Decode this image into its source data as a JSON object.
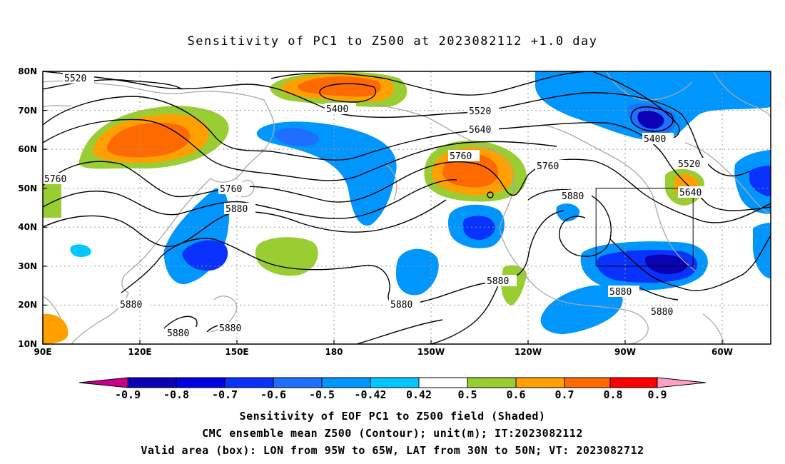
{
  "title": "Sensitivity of PC1 to Z500 at 2023082112 +1.0 day",
  "map": {
    "lon_ticks": [
      "90E",
      "120E",
      "150E",
      "180",
      "150W",
      "120W",
      "90W",
      "60W"
    ],
    "lat_ticks": [
      "80N",
      "70N",
      "60N",
      "50N",
      "40N",
      "30N",
      "20N",
      "10N"
    ],
    "contour_labels": [
      "5520",
      "5400",
      "5520",
      "5640",
      "5760",
      "5400",
      "5520",
      "5640",
      "5760",
      "5760",
      "5880",
      "5760",
      "5880",
      "5880",
      "5880",
      "5880",
      "5880",
      "5880",
      "5880",
      "5880"
    ],
    "valid_box": {
      "lon_min": -95,
      "lon_max": -65,
      "lat_min": 30,
      "lat_max": 50
    }
  },
  "colorbar": {
    "tick_labels": [
      "-0.9",
      "-0.8",
      "-0.7",
      "-0.6",
      "-0.5",
      "-0.42",
      "0.42",
      "0.5",
      "0.6",
      "0.7",
      "0.8",
      "0.9"
    ],
    "colors": [
      "#0a00b4",
      "#0000e6",
      "#0a32ff",
      "#1e6eff",
      "#0096ff",
      "#00c8ff",
      "#ffffff",
      "#9acd32",
      "#ffa000",
      "#ff6a00",
      "#ff3200",
      "#ff0000"
    ],
    "under_color": "#c8008c",
    "over_color": "#ffa0c8"
  },
  "captions": {
    "line1": "Sensitivity of EOF PC1 to Z500 field (Shaded)",
    "line2": "CMC ensemble mean Z500 (Contour); unit(m); IT:2023082112",
    "line3": "Valid area (box): LON from 95W to 65W, LAT from 30N to 50N; VT: 2023082712"
  }
}
